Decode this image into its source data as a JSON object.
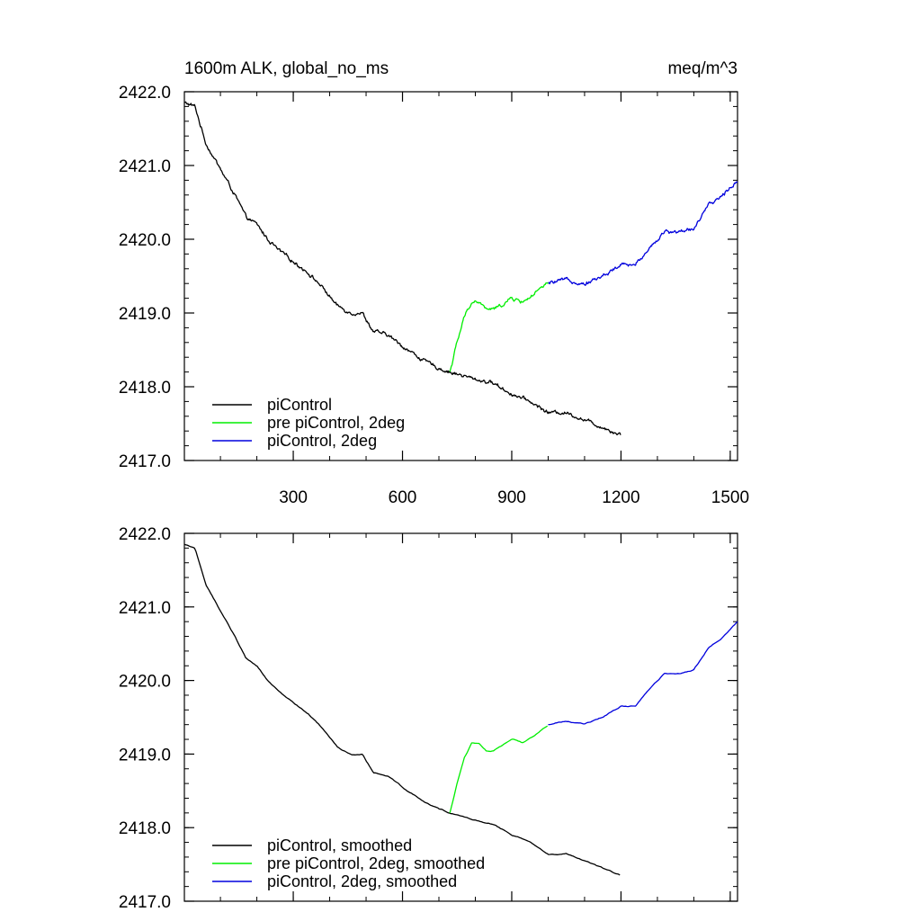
{
  "chart_data": [
    {
      "type": "line",
      "title": "1600m ALK, global_no_ms",
      "units": "meq/m^3",
      "xlim": [
        1,
        1520
      ],
      "ylim": [
        2417.0,
        2422.0
      ],
      "ytick_labels": [
        "2417.0",
        "2418.0",
        "2419.0",
        "2420.0",
        "2421.0",
        "2422.0"
      ],
      "yticks": [
        2417.0,
        2418.0,
        2419.0,
        2420.0,
        2421.0,
        2422.0
      ],
      "xtick_labels": [
        "300",
        "600",
        "900",
        "1200",
        "1500"
      ],
      "xticks": [
        300,
        600,
        900,
        1200,
        1500
      ],
      "legend": "bottom-left",
      "series": [
        {
          "name": "piControl",
          "color": "#000000",
          "noisy": true,
          "x": [
            1,
            30,
            60,
            100,
            140,
            170,
            200,
            230,
            260,
            300,
            340,
            380,
            420,
            460,
            490,
            520,
            560,
            600,
            660,
            700,
            730,
            800,
            850,
            900,
            950,
            1000,
            1050,
            1100,
            1150,
            1200
          ],
          "y": [
            2421.85,
            2421.8,
            2421.3,
            2420.95,
            2420.6,
            2420.3,
            2420.2,
            2420.0,
            2419.85,
            2419.7,
            2419.55,
            2419.35,
            2419.1,
            2419.0,
            2419.0,
            2418.75,
            2418.7,
            2418.55,
            2418.35,
            2418.25,
            2418.2,
            2418.1,
            2418.05,
            2417.9,
            2417.8,
            2417.65,
            2417.65,
            2417.55,
            2417.45,
            2417.35
          ]
        },
        {
          "name": "pre piControl, 2deg",
          "color": "#00ee00",
          "noisy": true,
          "x": [
            730,
            750,
            770,
            790,
            810,
            830,
            850,
            870,
            900,
            930,
            960,
            1000
          ],
          "y": [
            2418.2,
            2418.6,
            2418.95,
            2419.15,
            2419.15,
            2419.05,
            2419.05,
            2419.1,
            2419.2,
            2419.15,
            2419.25,
            2419.4
          ]
        },
        {
          "name": "piControl, 2deg",
          "color": "#0000dd",
          "noisy": true,
          "x": [
            1000,
            1050,
            1100,
            1150,
            1200,
            1240,
            1280,
            1320,
            1360,
            1400,
            1440,
            1480,
            1520
          ],
          "y": [
            2419.4,
            2419.45,
            2419.4,
            2419.5,
            2419.65,
            2419.65,
            2419.9,
            2420.1,
            2420.1,
            2420.15,
            2420.45,
            2420.6,
            2420.8
          ]
        }
      ]
    },
    {
      "type": "line",
      "xlim": [
        1,
        1520
      ],
      "ylim": [
        2417.0,
        2422.0
      ],
      "ytick_labels": [
        "2417.0",
        "2418.0",
        "2419.0",
        "2420.0",
        "2421.0",
        "2422.0"
      ],
      "yticks": [
        2417.0,
        2418.0,
        2419.0,
        2420.0,
        2421.0,
        2422.0
      ],
      "xticks": [
        300,
        600,
        900,
        1200,
        1500
      ],
      "legend": "bottom-left",
      "series": [
        {
          "name": "piControl, smoothed",
          "color": "#000000",
          "noisy": false,
          "x": [
            1,
            30,
            60,
            100,
            140,
            170,
            200,
            230,
            260,
            300,
            340,
            380,
            420,
            460,
            490,
            520,
            560,
            600,
            660,
            700,
            730,
            800,
            850,
            900,
            950,
            1000,
            1050,
            1100,
            1150,
            1200
          ],
          "y": [
            2421.85,
            2421.8,
            2421.3,
            2420.95,
            2420.6,
            2420.3,
            2420.2,
            2420.0,
            2419.85,
            2419.7,
            2419.55,
            2419.35,
            2419.1,
            2419.0,
            2419.0,
            2418.75,
            2418.7,
            2418.55,
            2418.35,
            2418.25,
            2418.2,
            2418.1,
            2418.05,
            2417.9,
            2417.8,
            2417.65,
            2417.65,
            2417.55,
            2417.45,
            2417.35
          ]
        },
        {
          "name": "pre piControl, 2deg, smoothed",
          "color": "#00ee00",
          "noisy": false,
          "x": [
            730,
            750,
            770,
            790,
            810,
            830,
            850,
            870,
            900,
            930,
            960,
            1000
          ],
          "y": [
            2418.2,
            2418.6,
            2418.95,
            2419.15,
            2419.15,
            2419.05,
            2419.05,
            2419.1,
            2419.2,
            2419.15,
            2419.25,
            2419.4
          ]
        },
        {
          "name": "piControl, 2deg, smoothed",
          "color": "#0000dd",
          "noisy": false,
          "x": [
            1000,
            1050,
            1100,
            1150,
            1200,
            1240,
            1280,
            1320,
            1360,
            1400,
            1440,
            1480,
            1520
          ],
          "y": [
            2419.4,
            2419.45,
            2419.4,
            2419.5,
            2419.65,
            2419.65,
            2419.9,
            2420.1,
            2420.1,
            2420.15,
            2420.45,
            2420.6,
            2420.8
          ]
        }
      ]
    }
  ]
}
